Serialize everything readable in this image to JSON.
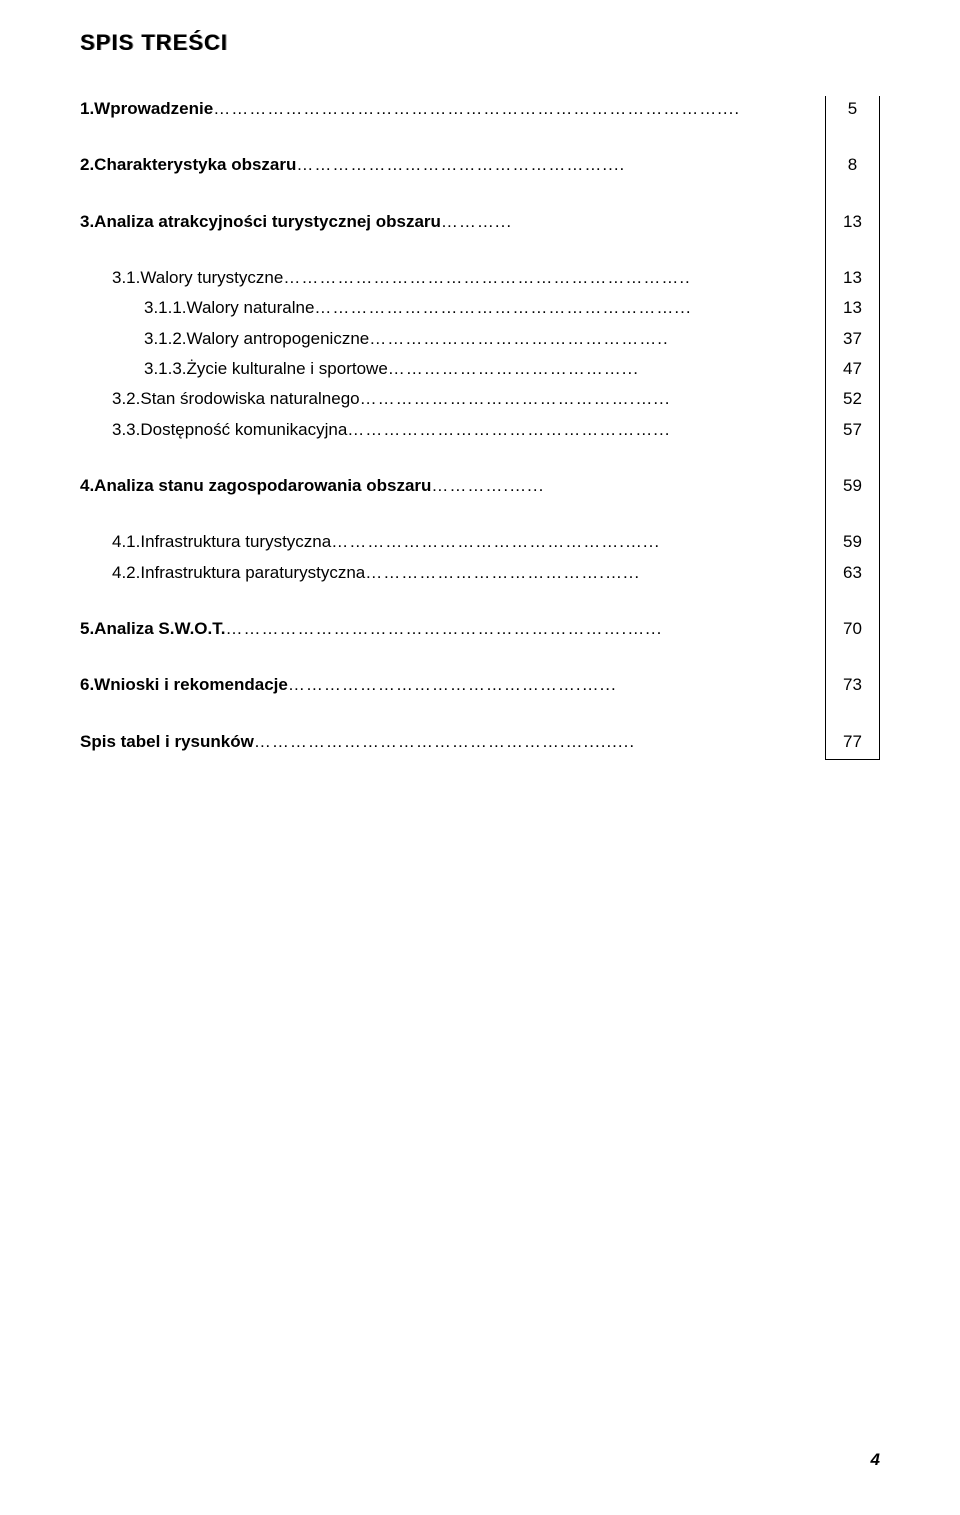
{
  "title": "SPIS TREŚCI",
  "entries": [
    {
      "num": "1.",
      "text": "Wprowadzenie",
      "leader": " …………………………………………………………………………....",
      "page": "5",
      "bold": true,
      "indent": 0
    },
    {
      "spacer": true
    },
    {
      "num": "2.",
      "text": "Charakterystyka obszaru",
      "leader": " ……………………………………………....",
      "page": "8",
      "bold": true,
      "indent": 0
    },
    {
      "spacer": true
    },
    {
      "num": "3.",
      "text": "Analiza atrakcyjności turystycznej obszaru",
      "leader": " ………...",
      "page": "13",
      "bold": true,
      "indent": 0
    },
    {
      "spacer": true
    },
    {
      "num": "3.1.",
      "text": "Walory turystyczne",
      "leader": " …………………………………………………………..",
      "page": "13",
      "bold": false,
      "indent": 1
    },
    {
      "num": "3.1.1.",
      "text": "Walory naturalne",
      "leader": " ……………………………………………………...",
      "page": "13",
      "bold": false,
      "indent": 2
    },
    {
      "num": "3.1.2.",
      "text": "Walory antropogeniczne",
      "leader": " …………………………………………..",
      "page": "37",
      "bold": false,
      "indent": 2
    },
    {
      "num": "3.1.3.",
      "text": "Życie kulturalne i sportowe",
      "leader": " …………………………………...",
      "page": "47",
      "bold": false,
      "indent": 2
    },
    {
      "num": "3.2.",
      "text": "Stan środowiska naturalnego",
      "leader": " ……………………………………….…...",
      "page": "52",
      "bold": false,
      "indent": 1
    },
    {
      "num": "3.3.",
      "text": "Dostępność komunikacyjna",
      "leader": " ……………………………………………...",
      "page": "57",
      "bold": false,
      "indent": 1
    },
    {
      "spacer": true
    },
    {
      "num": "4.",
      "text": "Analiza stanu zagospodarowania obszaru",
      "leader": " ………….…...",
      "page": "59",
      "bold": true,
      "indent": 0
    },
    {
      "spacer": true
    },
    {
      "num": "4.1.",
      "text": "Infrastruktura turystyczna",
      "leader": " ………………………………………….…...",
      "page": "59",
      "bold": false,
      "indent": 1
    },
    {
      "num": "4.2.",
      "text": "Infrastruktura paraturystyczna",
      "leader": " ………………………………….…...",
      "page": "63",
      "bold": false,
      "indent": 1
    },
    {
      "spacer": true
    },
    {
      "num": "5.",
      "text": "Analiza S.W.O.T.",
      "leader": " ………………………………………………………….…...",
      "page": "70",
      "bold": true,
      "indent": 0
    },
    {
      "spacer": true
    },
    {
      "num": "6.",
      "text": "Wnioski i rekomendacje",
      "leader": " ………………………………………….…...",
      "page": "73",
      "bold": true,
      "indent": 0
    },
    {
      "spacer": true
    },
    {
      "num": "",
      "text": "Spis tabel i rysunków",
      "leader": " …………………………………………….….........",
      "page": "77",
      "bold": true,
      "indent": 0
    }
  ],
  "pageNumber": "4",
  "colors": {
    "text": "#000000",
    "background": "#ffffff",
    "border": "#000000"
  },
  "fonts": {
    "body_family": "Verdana",
    "body_size_pt": 13,
    "title_size_pt": 17
  }
}
